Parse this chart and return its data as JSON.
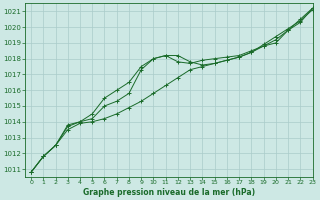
{
  "title": "Graphe pression niveau de la mer (hPa)",
  "bg_color": "#cde8e4",
  "grid_color": "#aaccca",
  "line_color": "#1a6b2a",
  "xlim": [
    -0.5,
    23
  ],
  "ylim": [
    1010.5,
    1021.5
  ],
  "yticks": [
    1011,
    1012,
    1013,
    1014,
    1015,
    1016,
    1017,
    1018,
    1019,
    1020,
    1021
  ],
  "xticks": [
    0,
    1,
    2,
    3,
    4,
    5,
    6,
    7,
    8,
    9,
    10,
    11,
    12,
    13,
    14,
    15,
    16,
    17,
    18,
    19,
    20,
    21,
    22,
    23
  ],
  "s1_x": [
    0,
    1,
    2,
    3,
    4,
    5,
    6,
    7,
    8,
    9,
    10,
    11,
    12,
    13,
    14,
    15,
    16,
    17,
    18,
    19,
    20,
    21,
    22,
    23
  ],
  "s1_y": [
    1010.8,
    1011.8,
    1012.5,
    1013.8,
    1014.0,
    1014.2,
    1015.0,
    1015.3,
    1015.8,
    1017.3,
    1018.0,
    1018.2,
    1017.8,
    1017.7,
    1017.9,
    1018.0,
    1018.1,
    1018.2,
    1018.5,
    1018.8,
    1019.0,
    1019.8,
    1020.3,
    1021.2
  ],
  "s2_x": [
    0,
    1,
    2,
    3,
    4,
    5,
    6,
    7,
    8,
    9,
    10,
    11,
    12,
    13,
    14,
    15,
    16,
    17,
    18,
    19,
    20,
    21,
    22,
    23
  ],
  "s2_y": [
    1010.8,
    1011.8,
    1012.5,
    1013.5,
    1013.9,
    1014.0,
    1014.2,
    1014.5,
    1014.9,
    1015.3,
    1015.8,
    1016.3,
    1016.8,
    1017.3,
    1017.5,
    1017.7,
    1017.9,
    1018.1,
    1018.4,
    1018.9,
    1019.4,
    1019.9,
    1020.4,
    1021.1
  ],
  "s3_x": [
    0,
    1,
    2,
    3,
    4,
    5,
    6,
    7,
    8,
    9,
    10,
    11,
    12,
    13,
    14,
    15,
    16,
    17,
    18,
    19,
    20,
    21,
    22,
    23
  ],
  "s3_y": [
    1010.8,
    1011.8,
    1012.5,
    1013.7,
    1014.0,
    1014.5,
    1015.5,
    1016.0,
    1016.5,
    1017.5,
    1018.0,
    1018.2,
    1018.2,
    1017.8,
    1017.6,
    1017.7,
    1017.9,
    1018.1,
    1018.4,
    1018.8,
    1019.2,
    1019.8,
    1020.5,
    1021.2
  ]
}
